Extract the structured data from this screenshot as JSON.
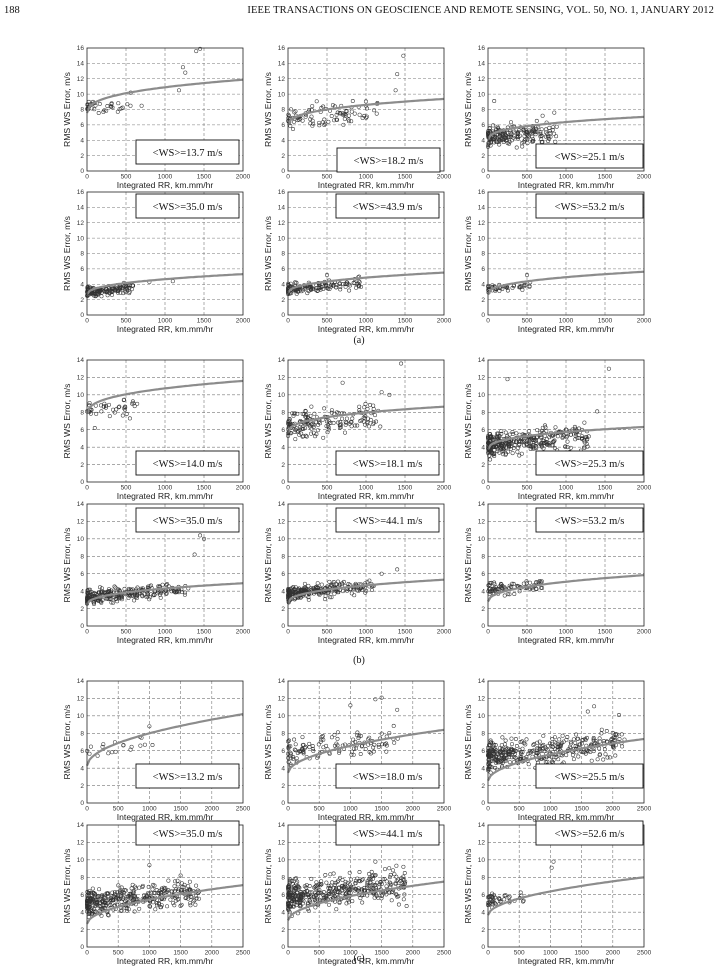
{
  "header": {
    "page_number": "188",
    "running_head": "IEEE TRANSACTIONS ON GEOSCIENCE AND REMOTE SENSING, VOL. 50, NO. 1, JANUARY 2012"
  },
  "axis_text": {
    "xlabel": "Integrated RR, km.mm/hr",
    "ylabel": "RMS WS Error, m/s"
  },
  "captions": [
    "(a)",
    "(b)",
    "(c)"
  ],
  "chart_data": [
    {
      "type": "scatter",
      "group": "a",
      "label": "<WS>=13.7 m/s",
      "xlim": [
        0,
        2000
      ],
      "ylim": [
        0,
        16
      ],
      "yticks": [
        0,
        2,
        4,
        6,
        8,
        10,
        12,
        14,
        16
      ],
      "xticks": [
        0,
        500,
        1000,
        1500,
        2000
      ],
      "fit": {
        "a": 7.3,
        "b": 0.32,
        "p": 0.35
      },
      "points": {
        "n": 34,
        "xmax": 560,
        "center": 8.2,
        "spread": 0.8,
        "outliers": [
          [
            1180,
            10.5
          ],
          [
            1230,
            13.5
          ],
          [
            1260,
            12.8
          ],
          [
            1400,
            15.6
          ],
          [
            1450,
            15.9
          ],
          [
            700,
            8.5
          ],
          [
            560,
            10.2
          ]
        ]
      }
    },
    {
      "type": "scatter",
      "group": "a",
      "label": "<WS>=18.2 m/s",
      "xlim": [
        0,
        2000
      ],
      "ylim": [
        0,
        16
      ],
      "yticks": [
        0,
        2,
        4,
        6,
        8,
        10,
        12,
        14,
        16
      ],
      "xticks": [
        0,
        500,
        1000,
        1500,
        2000
      ],
      "fit": {
        "a": 5.8,
        "b": 0.25,
        "p": 0.35
      },
      "points": {
        "n": 90,
        "xmax": 1150,
        "center": 6.8,
        "spread": 1.2,
        "outliers": [
          [
            1380,
            10.5
          ],
          [
            1480,
            15.0
          ],
          [
            1400,
            12.6
          ],
          [
            1000,
            8.5
          ]
        ]
      }
    },
    {
      "type": "scatter",
      "group": "a",
      "label": "<WS>=25.1 m/s",
      "xlim": [
        0,
        2000
      ],
      "ylim": [
        0,
        16
      ],
      "yticks": [
        0,
        2,
        4,
        6,
        8,
        10,
        12,
        14,
        16
      ],
      "xticks": [
        0,
        500,
        1000,
        1500,
        2000
      ],
      "fit": {
        "a": 3.9,
        "b": 0.22,
        "p": 0.35
      },
      "points": {
        "n": 190,
        "xmax": 900,
        "center": 4.4,
        "spread": 1.0,
        "outliers": [
          [
            80,
            9.1
          ],
          [
            700,
            7.2
          ],
          [
            850,
            7.6
          ]
        ]
      }
    },
    {
      "type": "scatter",
      "group": "a",
      "label": "<WS>=35.0 m/s",
      "xlim": [
        0,
        2000
      ],
      "ylim": [
        0,
        16
      ],
      "yticks": [
        0,
        2,
        4,
        6,
        8,
        10,
        12,
        14,
        16
      ],
      "xticks": [
        0,
        500,
        1000,
        1500,
        2000
      ],
      "fit": {
        "a": 2.6,
        "b": 0.13,
        "p": 0.4
      },
      "points": {
        "n": 150,
        "xmax": 600,
        "center": 3.0,
        "spread": 0.45,
        "outliers": [
          [
            1100,
            4.4
          ],
          [
            800,
            4.3
          ]
        ]
      }
    },
    {
      "type": "scatter",
      "group": "a",
      "label": "<WS>=43.9 m/s",
      "xlim": [
        0,
        2000
      ],
      "ylim": [
        0,
        16
      ],
      "yticks": [
        0,
        2,
        4,
        6,
        8,
        10,
        12,
        14,
        16
      ],
      "xticks": [
        0,
        500,
        1000,
        1500,
        2000
      ],
      "fit": {
        "a": 2.8,
        "b": 0.13,
        "p": 0.4
      },
      "points": {
        "n": 140,
        "xmax": 950,
        "center": 3.4,
        "spread": 0.55,
        "outliers": [
          [
            500,
            5.2
          ],
          [
            900,
            4.9
          ]
        ]
      }
    },
    {
      "type": "scatter",
      "group": "a",
      "label": "<WS>=53.2 m/s",
      "xlim": [
        0,
        2000
      ],
      "ylim": [
        0,
        16
      ],
      "yticks": [
        0,
        2,
        4,
        6,
        8,
        10,
        12,
        14,
        16
      ],
      "xticks": [
        0,
        500,
        1000,
        1500,
        2000
      ],
      "fit": {
        "a": 2.7,
        "b": 0.14,
        "p": 0.4
      },
      "points": {
        "n": 45,
        "xmax": 550,
        "center": 3.5,
        "spread": 0.5,
        "outliers": [
          [
            500,
            5.2
          ]
        ]
      }
    },
    {
      "type": "scatter",
      "group": "b",
      "label": "<WS>=14.0 m/s",
      "xlim": [
        0,
        2000
      ],
      "ylim": [
        0,
        14
      ],
      "yticks": [
        0,
        2,
        4,
        6,
        8,
        10,
        12,
        14
      ],
      "xticks": [
        0,
        500,
        1000,
        1500,
        2000
      ],
      "fit": {
        "a": 7.6,
        "b": 0.28,
        "p": 0.35
      },
      "points": {
        "n": 40,
        "xmax": 650,
        "center": 8.2,
        "spread": 0.7,
        "outliers": [
          [
            100,
            6.2
          ],
          [
            550,
            7.3
          ]
        ]
      }
    },
    {
      "type": "scatter",
      "group": "b",
      "label": "<WS>=18.1 m/s",
      "xlim": [
        0,
        2000
      ],
      "ylim": [
        0,
        14
      ],
      "yticks": [
        0,
        2,
        4,
        6,
        8,
        10,
        12,
        14
      ],
      "xticks": [
        0,
        500,
        1000,
        1500,
        2000
      ],
      "fit": {
        "a": 5.5,
        "b": 0.22,
        "p": 0.35
      },
      "points": {
        "n": 170,
        "xmax": 1200,
        "center": 6.5,
        "spread": 1.3,
        "outliers": [
          [
            1450,
            13.6
          ],
          [
            1200,
            10.3
          ],
          [
            1300,
            10.0
          ],
          [
            700,
            11.4
          ]
        ]
      }
    },
    {
      "type": "scatter",
      "group": "b",
      "label": "<WS>=25.3 m/s",
      "xlim": [
        0,
        2000
      ],
      "ylim": [
        0,
        14
      ],
      "yticks": [
        0,
        2,
        4,
        6,
        8,
        10,
        12,
        14
      ],
      "xticks": [
        0,
        500,
        1000,
        1500,
        2000
      ],
      "fit": {
        "a": 3.6,
        "b": 0.19,
        "p": 0.35
      },
      "points": {
        "n": 340,
        "xmax": 1300,
        "center": 4.3,
        "spread": 1.0,
        "outliers": [
          [
            1550,
            13.0
          ],
          [
            250,
            11.8
          ],
          [
            1400,
            8.1
          ]
        ]
      }
    },
    {
      "type": "scatter",
      "group": "b",
      "label": "<WS>=35.0 m/s",
      "xlim": [
        0,
        2000
      ],
      "ylim": [
        0,
        14
      ],
      "yticks": [
        0,
        2,
        4,
        6,
        8,
        10,
        12,
        14
      ],
      "xticks": [
        0,
        500,
        1000,
        1500,
        2000
      ],
      "fit": {
        "a": 2.4,
        "b": 0.12,
        "p": 0.4
      },
      "points": {
        "n": 260,
        "xmax": 1300,
        "center": 3.3,
        "spread": 0.6,
        "outliers": [
          [
            1450,
            10.4
          ],
          [
            1380,
            8.2
          ],
          [
            1500,
            10.0
          ]
        ]
      }
    },
    {
      "type": "scatter",
      "group": "b",
      "label": "<WS>=44.1 m/s",
      "xlim": [
        0,
        2000
      ],
      "ylim": [
        0,
        14
      ],
      "yticks": [
        0,
        2,
        4,
        6,
        8,
        10,
        12,
        14
      ],
      "xticks": [
        0,
        500,
        1000,
        1500,
        2000
      ],
      "fit": {
        "a": 2.6,
        "b": 0.13,
        "p": 0.4
      },
      "points": {
        "n": 260,
        "xmax": 1100,
        "center": 3.7,
        "spread": 0.6,
        "outliers": [
          [
            1400,
            6.5
          ],
          [
            1200,
            6.0
          ]
        ]
      }
    },
    {
      "type": "scatter",
      "group": "b",
      "label": "<WS>=53.2 m/s",
      "xlim": [
        0,
        2000
      ],
      "ylim": [
        0,
        14
      ],
      "yticks": [
        0,
        2,
        4,
        6,
        8,
        10,
        12,
        14
      ],
      "xticks": [
        0,
        500,
        1000,
        1500,
        2000
      ],
      "fit": {
        "a": 2.7,
        "b": 0.15,
        "p": 0.4
      },
      "points": {
        "n": 80,
        "xmax": 700,
        "center": 4.2,
        "spread": 0.6,
        "outliers": []
      }
    },
    {
      "type": "scatter",
      "group": "c",
      "label": "<WS>=13.2 m/s",
      "xlim": [
        0,
        2500
      ],
      "ylim": [
        0,
        14
      ],
      "yticks": [
        0,
        2,
        4,
        6,
        8,
        10,
        12,
        14
      ],
      "xticks": [
        0,
        500,
        1000,
        1500,
        2000,
        2500
      ],
      "fit": {
        "a": 4.2,
        "b": 0.12,
        "p": 0.5
      },
      "points": {
        "n": 18,
        "xmax": 1100,
        "center": 6.0,
        "spread": 0.7,
        "outliers": [
          [
            1000,
            8.8
          ],
          [
            850,
            7.6
          ]
        ]
      }
    },
    {
      "type": "scatter",
      "group": "c",
      "label": "<WS>=18.0 m/s",
      "xlim": [
        0,
        2500
      ],
      "ylim": [
        0,
        14
      ],
      "yticks": [
        0,
        2,
        4,
        6,
        8,
        10,
        12,
        14
      ],
      "xticks": [
        0,
        500,
        1000,
        1500,
        2000,
        2500
      ],
      "fit": {
        "a": 3.4,
        "b": 0.1,
        "p": 0.5
      },
      "points": {
        "n": 120,
        "xmax": 1800,
        "center": 5.8,
        "spread": 1.2,
        "outliers": [
          [
            1500,
            12.1
          ],
          [
            1400,
            11.9
          ],
          [
            1750,
            10.7
          ],
          [
            1000,
            11.2
          ]
        ]
      }
    },
    {
      "type": "scatter",
      "group": "c",
      "label": "<WS>=25.5 m/s",
      "xlim": [
        0,
        2500
      ],
      "ylim": [
        0,
        14
      ],
      "yticks": [
        0,
        2,
        4,
        6,
        8,
        10,
        12,
        14
      ],
      "xticks": [
        0,
        500,
        1000,
        1500,
        2000,
        2500
      ],
      "fit": {
        "a": 2.5,
        "b": 0.097,
        "p": 0.5
      },
      "points": {
        "n": 380,
        "xmax": 2200,
        "center": 5.2,
        "spread": 1.2,
        "outliers": [
          [
            1700,
            11.1
          ],
          [
            1600,
            10.5
          ],
          [
            2100,
            10.1
          ]
        ]
      }
    },
    {
      "type": "scatter",
      "group": "c",
      "label": "<WS>=35.0 m/s",
      "xlim": [
        0,
        2500
      ],
      "ylim": [
        0,
        14
      ],
      "yticks": [
        0,
        2,
        4,
        6,
        8,
        10,
        12,
        14
      ],
      "xticks": [
        0,
        500,
        1000,
        1500,
        2000,
        2500
      ],
      "fit": {
        "a": 2.6,
        "b": 0.09,
        "p": 0.5
      },
      "points": {
        "n": 380,
        "xmax": 1800,
        "center": 5.0,
        "spread": 1.1,
        "outliers": [
          [
            1000,
            9.4
          ],
          [
            1500,
            8.2
          ]
        ]
      }
    },
    {
      "type": "scatter",
      "group": "c",
      "label": "<WS>=44.1 m/s",
      "xlim": [
        0,
        2500
      ],
      "ylim": [
        0,
        14
      ],
      "yticks": [
        0,
        2,
        4,
        6,
        8,
        10,
        12,
        14
      ],
      "xticks": [
        0,
        500,
        1000,
        1500,
        2000,
        2500
      ],
      "fit": {
        "a": 3.0,
        "b": 0.09,
        "p": 0.5
      },
      "points": {
        "n": 420,
        "xmax": 1900,
        "center": 5.7,
        "spread": 1.3,
        "outliers": [
          [
            1400,
            9.8
          ],
          [
            1850,
            9.2
          ],
          [
            1900,
            4.7
          ]
        ]
      }
    },
    {
      "type": "scatter",
      "group": "c",
      "label": "<WS>=52.6 m/s",
      "xlim": [
        0,
        2500
      ],
      "ylim": [
        0,
        14
      ],
      "yticks": [
        0,
        2,
        4,
        6,
        8,
        10,
        12,
        14
      ],
      "xticks": [
        0,
        500,
        1000,
        1500,
        2000,
        2500
      ],
      "fit": {
        "a": 3.6,
        "b": 0.088,
        "p": 0.5
      },
      "points": {
        "n": 45,
        "xmax": 600,
        "center": 5.2,
        "spread": 0.6,
        "outliers": [
          [
            1050,
            9.8
          ],
          [
            1020,
            9.1
          ]
        ]
      }
    }
  ]
}
